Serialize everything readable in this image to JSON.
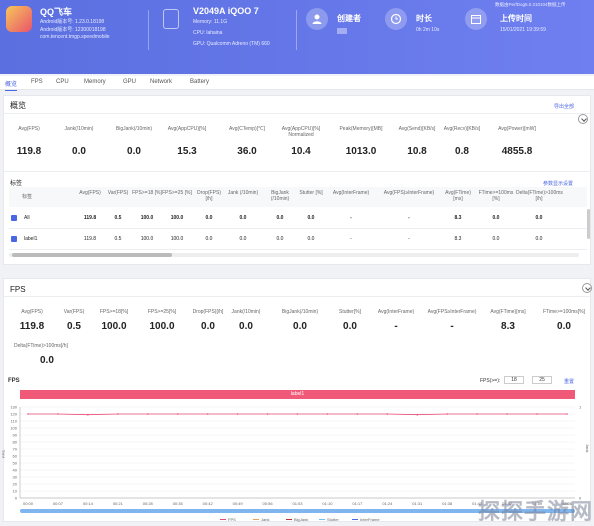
{
  "header": {
    "app_name": "QQ飞车",
    "android_version": "Android版本号: 1.23.0.18198",
    "android_build": "Android版本号: 12300018198",
    "package": "com.tencent.tmgp.speedmobile",
    "device_name": "V2049A iQOO 7",
    "memory": "Memory: 11.1G",
    "cpu": "CPU: lahaina",
    "gpu": "GPU: Qualcomm Adreno (TM) 660",
    "creator_label": "创建者",
    "duration_label": "时长",
    "duration_value": "0h 2m 10s",
    "upload_label": "上传时间",
    "upload_value": "15/01/2021 19:39:59",
    "perfdog_version": "数据由PerfDog5.0.210104数据上传"
  },
  "tabs": [
    "概览",
    "FPS",
    "CPU",
    "Memory",
    "GPU",
    "Network",
    "Battery"
  ],
  "overview": {
    "title": "概览",
    "export_link": "导出全部",
    "metrics": [
      {
        "label": "Avg(FPS)",
        "value": "119.8"
      },
      {
        "label": "Jank(/10min)",
        "value": "0.0"
      },
      {
        "label": "BigJank(/10min)",
        "value": "0.0"
      },
      {
        "label": "Avg(AppCPU)[%]",
        "value": "15.3"
      },
      {
        "label": "Avg(CTemp)[℃]",
        "value": "36.0"
      },
      {
        "label": "Avg(AppCPU)[%] Normalized",
        "value": "10.4"
      },
      {
        "label": "Peak(Memory)[MB]",
        "value": "1013.0"
      },
      {
        "label": "Avg(Send)[KB/s]",
        "value": "10.8"
      },
      {
        "label": "Avg(Recv)[KB/s]",
        "value": "0.8"
      },
      {
        "label": "Avg(Power)[mW]",
        "value": "4855.8"
      }
    ],
    "labels_title": "标签",
    "labels_link": "参数显示设置",
    "table_headers": [
      "标签",
      "Avg(FPS)",
      "Var(FPS)",
      "FPS>=18 [%]",
      "FPS>=25 [%]",
      "Drop(FPS) [/h]",
      "Jank (/10min)",
      "BigJank (/10min)",
      "Stutter [%]",
      "Avg(InterFrame)",
      "Avg(FPS)≥InterFrame)",
      "Avg(FTime) [ms]",
      "FTime>=100ms [%]",
      "Delta(FTime)>100ms [/h]"
    ],
    "rows": [
      {
        "name": "All",
        "cells": [
          "119.8",
          "0.5",
          "100.0",
          "100.0",
          "0.0",
          "0.0",
          "0.0",
          "0.0",
          "-",
          "-",
          "8.3",
          "0.0",
          "0.0"
        ]
      },
      {
        "name": "label1",
        "cells": [
          "119.8",
          "0.5",
          "100.0",
          "100.0",
          "0.0",
          "0.0",
          "0.0",
          "0.0",
          "-",
          "-",
          "8.3",
          "0.0",
          "0.0"
        ]
      }
    ]
  },
  "fps": {
    "title": "FPS",
    "metrics": [
      {
        "label": "Avg(FPS)",
        "value": "119.8"
      },
      {
        "label": "Var(FPS)",
        "value": "0.5"
      },
      {
        "label": "FPS>=18[%]",
        "value": "100.0"
      },
      {
        "label": "FPS>=25[%]",
        "value": "100.0"
      },
      {
        "label": "Drop(FPS)[/h]",
        "value": "0.0"
      },
      {
        "label": "Jank(/10min)",
        "value": "0.0"
      },
      {
        "label": "BigJank(/10min)",
        "value": "0.0"
      },
      {
        "label": "Stutter[%]",
        "value": "0.0"
      },
      {
        "label": "Avg(InterFrame)",
        "value": "-"
      },
      {
        "label": "Avg(FPS≥InterFrame)",
        "value": "-"
      },
      {
        "label": "Avg(FTime)[ms]",
        "value": "8.3"
      },
      {
        "label": "FTime>=100ms[%]",
        "value": "0.0"
      }
    ],
    "extra_label": "Delta(FTime)>100ms[/h]",
    "extra_value": "0.0",
    "chart_title": "FPS",
    "threshold_label": "FPS(>=):",
    "threshold_1": "18",
    "threshold_2": "25",
    "apply_link": "重置",
    "banner": "label1",
    "y_left_label": "FPS",
    "y_right_label": "Jank",
    "y_ticks": [
      "130",
      "120",
      "110",
      "100",
      "90",
      "80",
      "70",
      "60",
      "50",
      "40",
      "30",
      "20",
      "10",
      "0"
    ],
    "y_right_ticks": [
      "1",
      "0"
    ],
    "x_ticks": [
      "00:00",
      "00:07",
      "00:14",
      "00:21",
      "00:28",
      "00:35",
      "00:42",
      "00:49",
      "00:56",
      "01:03",
      "01:10",
      "01:17",
      "01:24",
      "01:31",
      "01:38",
      "01:45",
      "01:52",
      "01:59",
      "02:06"
    ],
    "legend": [
      {
        "name": "FPS",
        "color": "#e84a73"
      },
      {
        "name": "Jank",
        "color": "#f0a050"
      },
      {
        "name": "BigJank",
        "color": "#c03030"
      },
      {
        "name": "Stutter",
        "color": "#70c0f0"
      },
      {
        "name": "InterFrame",
        "color": "#4a67e3"
      }
    ]
  },
  "chart_data": {
    "type": "line",
    "title": "FPS",
    "xlabel": "",
    "ylabel": "FPS",
    "ylim": [
      0,
      130
    ],
    "x": [
      "00:00",
      "00:07",
      "00:14",
      "00:21",
      "00:28",
      "00:35",
      "00:42",
      "00:49",
      "00:56",
      "01:03",
      "01:10",
      "01:17",
      "01:24",
      "01:31",
      "01:38",
      "01:45",
      "01:52",
      "01:59",
      "02:06"
    ],
    "series": [
      {
        "name": "FPS",
        "color": "#e84a73",
        "values": [
          120,
          120,
          119,
          120,
          120,
          120,
          120,
          120,
          120,
          120,
          120,
          120,
          120,
          119,
          120,
          120,
          120,
          120,
          120
        ]
      }
    ]
  },
  "watermark": "探探手游网"
}
